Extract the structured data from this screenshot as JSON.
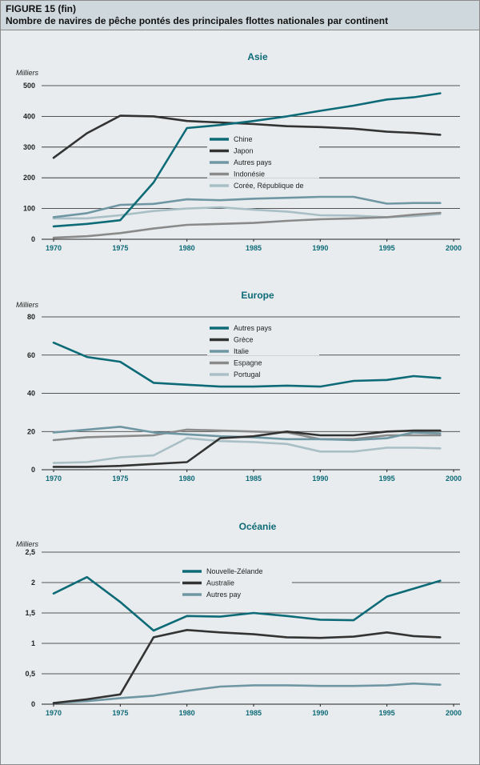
{
  "figure": {
    "label": "FIGURE 15 (fin)",
    "title": "Nombre de navires de pêche pontés des principales flottes nationales par continent"
  },
  "chart_data": [
    {
      "type": "line",
      "title": "Asie",
      "ylabel": "Milliers",
      "xlim": [
        1970,
        2000
      ],
      "ylim": [
        0,
        500
      ],
      "yticks": [
        0,
        100,
        200,
        300,
        400,
        500
      ],
      "ytick_labels": [
        "0",
        "100",
        "200",
        "300",
        "400",
        "500"
      ],
      "xticks": [
        1970,
        1975,
        1980,
        1985,
        1990,
        1995,
        2000
      ],
      "xtick_labels": [
        "1970",
        "1975",
        "1980",
        "1985",
        "1990",
        "1995",
        "2000"
      ],
      "series": [
        {
          "name": "Chine",
          "color": "#0d6b78",
          "x": [
            1970,
            1972.5,
            1975,
            1977.5,
            1980,
            1982.5,
            1985,
            1987.5,
            1990,
            1992.5,
            1995,
            1997,
            1999
          ],
          "y": [
            42,
            50,
            62,
            185,
            362,
            372,
            385,
            400,
            418,
            435,
            455,
            462,
            475
          ]
        },
        {
          "name": "Japon",
          "color": "#333333",
          "x": [
            1970,
            1972.5,
            1975,
            1977.5,
            1980,
            1982.5,
            1985,
            1987.5,
            1990,
            1992.5,
            1995,
            1997,
            1999
          ],
          "y": [
            265,
            345,
            402,
            400,
            385,
            380,
            375,
            368,
            365,
            360,
            350,
            346,
            340
          ]
        },
        {
          "name": "Autres pays",
          "color": "#6f97a3",
          "x": [
            1970,
            1972.5,
            1975,
            1977.5,
            1980,
            1982.5,
            1985,
            1987.5,
            1990,
            1992.5,
            1995,
            1997,
            1999
          ],
          "y": [
            72,
            85,
            112,
            115,
            130,
            127,
            132,
            135,
            138,
            138,
            116,
            118,
            118
          ]
        },
        {
          "name": "Indonésie",
          "color": "#8a8a8a",
          "x": [
            1970,
            1972.5,
            1975,
            1977.5,
            1980,
            1982.5,
            1985,
            1987.5,
            1990,
            1992.5,
            1995,
            1997,
            1999
          ],
          "y": [
            5,
            10,
            20,
            35,
            47,
            50,
            53,
            60,
            65,
            68,
            72,
            80,
            86
          ]
        },
        {
          "name": "Corée, République de",
          "color": "#a9bfc6",
          "x": [
            1970,
            1972.5,
            1975,
            1977.5,
            1980,
            1982.5,
            1985,
            1987.5,
            1990,
            1992.5,
            1995,
            1997,
            1999
          ],
          "y": [
            68,
            68,
            78,
            92,
            100,
            104,
            96,
            90,
            78,
            77,
            72,
            75,
            82
          ]
        }
      ],
      "legend": "center"
    },
    {
      "type": "line",
      "title": "Europe",
      "ylabel": "Milliers",
      "xlim": [
        1970,
        2000
      ],
      "ylim": [
        0,
        80
      ],
      "yticks": [
        0,
        20,
        40,
        60,
        80
      ],
      "ytick_labels": [
        "0",
        "20",
        "40",
        "60",
        "80"
      ],
      "xticks": [
        1970,
        1975,
        1980,
        1985,
        1990,
        1995,
        2000
      ],
      "xtick_labels": [
        "1970",
        "1975",
        "1980",
        "1985",
        "1990",
        "1995",
        "2000"
      ],
      "series": [
        {
          "name": "Autres pays",
          "color": "#0d6b78",
          "x": [
            1970,
            1972.5,
            1975,
            1977.5,
            1980,
            1982.5,
            1985,
            1987.5,
            1990,
            1992.5,
            1995,
            1997,
            1999
          ],
          "y": [
            66.5,
            59,
            56.5,
            45.5,
            44.5,
            43.5,
            43.5,
            44,
            43.5,
            46.5,
            47,
            49,
            48
          ]
        },
        {
          "name": "Grèce",
          "color": "#333333",
          "x": [
            1970,
            1972.5,
            1975,
            1977.5,
            1980,
            1982.5,
            1985,
            1987.5,
            1990,
            1992.5,
            1995,
            1997,
            1999
          ],
          "y": [
            1.5,
            1.5,
            2,
            3,
            4,
            16.5,
            17.5,
            20,
            18,
            18,
            20,
            20.5,
            20.5
          ]
        },
        {
          "name": "Italie",
          "color": "#6f97a3",
          "x": [
            1970,
            1972.5,
            1975,
            1977.5,
            1980,
            1982.5,
            1985,
            1987.5,
            1990,
            1992.5,
            1995,
            1997,
            1999
          ],
          "y": [
            19.5,
            21,
            22.5,
            19.5,
            18.5,
            17.5,
            17,
            16,
            16,
            15.5,
            16.5,
            19.5,
            19
          ]
        },
        {
          "name": "Espagne",
          "color": "#8a8a8a",
          "x": [
            1970,
            1972.5,
            1975,
            1977.5,
            1980,
            1982.5,
            1985,
            1987.5,
            1990,
            1992.5,
            1995,
            1997,
            1999
          ],
          "y": [
            15.5,
            17,
            17.5,
            18,
            21,
            20.5,
            20,
            19.5,
            16,
            16,
            18,
            18,
            18
          ]
        },
        {
          "name": "Portugal",
          "color": "#a9bfc6",
          "x": [
            1970,
            1972.5,
            1975,
            1977.5,
            1980,
            1982.5,
            1985,
            1987.5,
            1990,
            1992.5,
            1995,
            1997,
            1999
          ],
          "y": [
            3.5,
            4,
            6.5,
            7.5,
            16.5,
            15,
            14.5,
            13.5,
            9.5,
            9.5,
            11.5,
            11.5,
            11.2
          ]
        }
      ],
      "legend": "center"
    },
    {
      "type": "line",
      "title": "Océanie",
      "ylabel": "Milliers",
      "xlim": [
        1970,
        2000
      ],
      "ylim": [
        0,
        2.5
      ],
      "yticks": [
        0,
        0.5,
        1,
        1.5,
        2,
        2.5
      ],
      "ytick_labels": [
        "0",
        "0,5",
        "1",
        "1,5",
        "2",
        "2,5"
      ],
      "xticks": [
        1970,
        1975,
        1980,
        1985,
        1990,
        1995,
        2000
      ],
      "xtick_labels": [
        "1970",
        "1975",
        "1980",
        "1985",
        "1990",
        "1995",
        "2000"
      ],
      "series": [
        {
          "name": "Nouvelle-Zélande",
          "color": "#0d6b78",
          "x": [
            1970,
            1972.5,
            1975,
            1977.5,
            1980,
            1982.5,
            1985,
            1987.5,
            1990,
            1992.5,
            1995,
            1997,
            1999
          ],
          "y": [
            1.82,
            2.09,
            1.68,
            1.21,
            1.45,
            1.44,
            1.5,
            1.45,
            1.39,
            1.38,
            1.77,
            1.9,
            2.03
          ]
        },
        {
          "name": "Australie",
          "color": "#333333",
          "x": [
            1970,
            1972.5,
            1975,
            1977.5,
            1980,
            1982.5,
            1985,
            1987.5,
            1990,
            1992.5,
            1995,
            1997,
            1999
          ],
          "y": [
            0.02,
            0.08,
            0.16,
            1.1,
            1.22,
            1.18,
            1.15,
            1.1,
            1.09,
            1.11,
            1.18,
            1.12,
            1.1
          ]
        },
        {
          "name": "Autres pay",
          "color": "#6f97a3",
          "x": [
            1970,
            1972.5,
            1975,
            1977.5,
            1980,
            1982.5,
            1985,
            1987.5,
            1990,
            1992.5,
            1995,
            1997,
            1999
          ],
          "y": [
            0.02,
            0.05,
            0.1,
            0.14,
            0.22,
            0.29,
            0.31,
            0.31,
            0.3,
            0.3,
            0.31,
            0.34,
            0.32
          ]
        }
      ],
      "legend": "center"
    }
  ]
}
